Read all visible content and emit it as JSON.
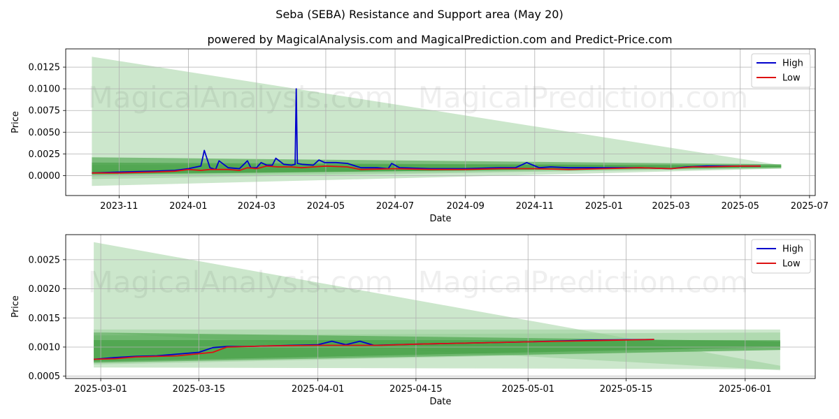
{
  "title": "Seba (SEBA) Resistance and Support area (May 20)",
  "subtitle": "powered by MagicalAnalysis.com and MagicalPrediction.com and Predict-Price.com",
  "watermark_left": "MagicalAnalysis.com",
  "watermark_right": "MagicalPrediction.com",
  "colors": {
    "high": "#0000cc",
    "low": "#dd1111",
    "band_light": "#8fc98f",
    "band_dark": "#3a9a3a",
    "grid": "#b0b0b0"
  },
  "chart_data": [
    {
      "type": "line",
      "xlabel": "Date",
      "ylabel": "Price",
      "xlim": [
        "2023-09-15",
        "2025-07-06"
      ],
      "ylim": [
        -0.0023,
        0.0146
      ],
      "x_ticks": [
        "2023-11",
        "2024-01",
        "2024-03",
        "2024-05",
        "2024-07",
        "2024-09",
        "2024-11",
        "2025-01",
        "2025-03",
        "2025-05",
        "2025-07"
      ],
      "y_ticks": [
        "0.0000",
        "0.0025",
        "0.0050",
        "0.0075",
        "0.0100",
        "0.0125"
      ],
      "legend": [
        "High",
        "Low"
      ],
      "grid": true,
      "series": [
        {
          "name": "High",
          "x": [
            "2023-10-08",
            "2023-11-01",
            "2023-12-01",
            "2023-12-20",
            "2024-01-01",
            "2024-01-12",
            "2024-01-15",
            "2024-01-20",
            "2024-01-25",
            "2024-01-28",
            "2024-02-05",
            "2024-02-15",
            "2024-02-22",
            "2024-02-25",
            "2024-03-01",
            "2024-03-05",
            "2024-03-10",
            "2024-03-15",
            "2024-03-18",
            "2024-03-25",
            "2024-04-01",
            "2024-04-04",
            "2024-04-05",
            "2024-04-06",
            "2024-04-10",
            "2024-04-20",
            "2024-04-25",
            "2024-04-30",
            "2024-05-10",
            "2024-05-20",
            "2024-06-01",
            "2024-06-15",
            "2024-06-25",
            "2024-06-28",
            "2024-07-05",
            "2024-08-01",
            "2024-09-01",
            "2024-10-01",
            "2024-10-15",
            "2024-10-25",
            "2024-11-05",
            "2024-11-15",
            "2024-12-01",
            "2024-12-15",
            "2025-01-01",
            "2025-02-01",
            "2025-03-01",
            "2025-03-15",
            "2025-04-01",
            "2025-05-01",
            "2025-05-19"
          ],
          "values": [
            0.0003,
            0.0004,
            0.0005,
            0.0006,
            0.0008,
            0.0011,
            0.0029,
            0.0009,
            0.0007,
            0.0017,
            0.0009,
            0.0008,
            0.0017,
            0.0009,
            0.0009,
            0.0015,
            0.0012,
            0.0012,
            0.002,
            0.0013,
            0.0012,
            0.0013,
            0.01,
            0.0014,
            0.0013,
            0.0012,
            0.0018,
            0.0015,
            0.0015,
            0.0014,
            0.0009,
            0.0009,
            0.0008,
            0.0014,
            0.0009,
            0.0008,
            0.0008,
            0.0009,
            0.0009,
            0.0015,
            0.0009,
            0.001,
            0.0009,
            0.0009,
            0.0009,
            0.0009,
            0.0008,
            0.001,
            0.0011,
            0.0011,
            0.0011
          ]
        },
        {
          "name": "Low",
          "x": [
            "2023-10-08",
            "2023-11-01",
            "2023-12-01",
            "2023-12-20",
            "2024-01-01",
            "2024-01-12",
            "2024-01-20",
            "2024-02-05",
            "2024-02-15",
            "2024-02-22",
            "2024-03-01",
            "2024-03-10",
            "2024-03-20",
            "2024-04-01",
            "2024-04-10",
            "2024-04-20",
            "2024-05-01",
            "2024-05-20",
            "2024-06-01",
            "2024-07-01",
            "2024-08-01",
            "2024-09-01",
            "2024-10-01",
            "2024-11-01",
            "2024-12-01",
            "2025-01-01",
            "2025-02-01",
            "2025-03-01",
            "2025-03-20",
            "2025-04-01",
            "2025-05-01",
            "2025-05-19"
          ],
          "values": [
            0.0003,
            0.0003,
            0.0004,
            0.0005,
            0.0007,
            0.0006,
            0.0007,
            0.0007,
            0.0006,
            0.0009,
            0.0008,
            0.0011,
            0.001,
            0.001,
            0.0009,
            0.001,
            0.0011,
            0.001,
            0.0007,
            0.0008,
            0.0007,
            0.0007,
            0.0008,
            0.0008,
            0.0007,
            0.0008,
            0.0009,
            0.0008,
            0.001,
            0.001,
            0.0011,
            0.0011
          ]
        }
      ]
    },
    {
      "type": "line",
      "xlabel": "Date",
      "ylabel": "Price",
      "xlim": [
        "2025-02-24",
        "2025-06-11"
      ],
      "ylim": [
        0.00046,
        0.00293
      ],
      "x_ticks": [
        "2025-03-01",
        "2025-03-15",
        "2025-04-01",
        "2025-04-15",
        "2025-05-01",
        "2025-05-15",
        "2025-06-01"
      ],
      "y_ticks": [
        "0.0005",
        "0.0010",
        "0.0015",
        "0.0020",
        "0.0025"
      ],
      "legend": [
        "High",
        "Low"
      ],
      "grid": true,
      "series": [
        {
          "name": "High",
          "x": [
            "2025-02-28",
            "2025-03-03",
            "2025-03-06",
            "2025-03-09",
            "2025-03-12",
            "2025-03-15",
            "2025-03-17",
            "2025-03-19",
            "2025-03-22",
            "2025-03-28",
            "2025-04-01",
            "2025-04-03",
            "2025-04-05",
            "2025-04-07",
            "2025-04-09",
            "2025-04-15",
            "2025-05-01",
            "2025-05-10",
            "2025-05-19"
          ],
          "values": [
            0.00079,
            0.00082,
            0.00084,
            0.00085,
            0.00088,
            0.00091,
            0.00099,
            0.00101,
            0.00101,
            0.00103,
            0.00104,
            0.0011,
            0.00104,
            0.0011,
            0.00103,
            0.00105,
            0.00109,
            0.00112,
            0.00113
          ]
        },
        {
          "name": "Low",
          "x": [
            "2025-02-28",
            "2025-03-03",
            "2025-03-06",
            "2025-03-12",
            "2025-03-17",
            "2025-03-19",
            "2025-03-25",
            "2025-04-01",
            "2025-04-10",
            "2025-04-15",
            "2025-05-01",
            "2025-05-10",
            "2025-05-19"
          ],
          "values": [
            0.00079,
            0.0008,
            0.00083,
            0.00085,
            0.00091,
            0.001,
            0.00102,
            0.00103,
            0.00103,
            0.00105,
            0.00109,
            0.00111,
            0.00113
          ]
        }
      ]
    }
  ]
}
